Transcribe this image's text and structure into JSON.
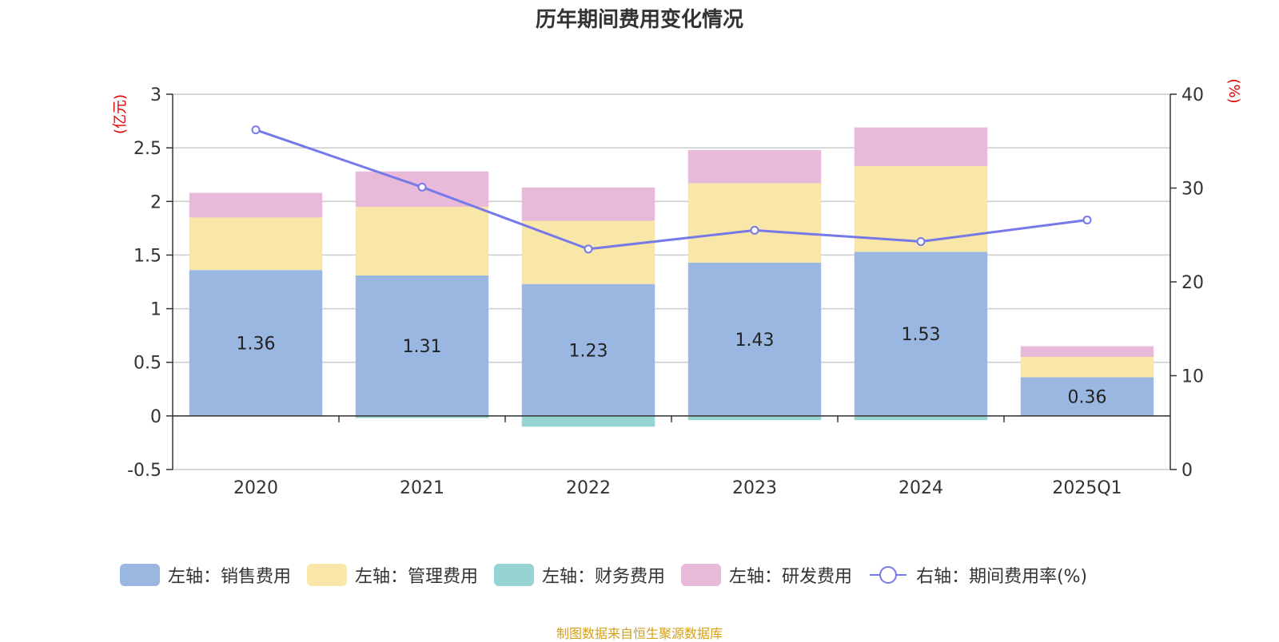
{
  "chart_data": {
    "type": "bar",
    "title": "历年期间费用变化情况",
    "categories": [
      "2020",
      "2021",
      "2022",
      "2023",
      "2024",
      "2025Q1"
    ],
    "left_axis": {
      "unit_label": "(亿元)",
      "ylim": [
        -0.5,
        3
      ],
      "ticks": [
        "3",
        "2.5",
        "2",
        "1.5",
        "1",
        "0.5",
        "0",
        "-0.5"
      ]
    },
    "right_axis": {
      "unit_label": "(%)",
      "ylim": [
        0,
        40
      ],
      "ticks": [
        "40",
        "30",
        "20",
        "10",
        "0"
      ]
    },
    "series": [
      {
        "name": "左轴：销售费用",
        "type": "bar",
        "color": "#9ab7e1",
        "values": [
          1.36,
          1.31,
          1.23,
          1.43,
          1.53,
          0.36
        ],
        "data_labels": [
          "1.36",
          "1.31",
          "1.23",
          "1.43",
          "1.53",
          "0.36"
        ]
      },
      {
        "name": "左轴：管理费用",
        "type": "bar",
        "color": "#f8e7a8",
        "values": [
          0.49,
          0.64,
          0.59,
          0.74,
          0.8,
          0.19
        ]
      },
      {
        "name": "左轴：财务费用",
        "type": "bar",
        "color": "#96d4d4",
        "values": [
          0.0,
          -0.02,
          -0.1,
          -0.04,
          -0.04,
          0.0
        ]
      },
      {
        "name": "左轴：研发费用",
        "type": "bar",
        "color": "#e8b9d9",
        "values": [
          0.23,
          0.33,
          0.31,
          0.31,
          0.36,
          0.1
        ]
      },
      {
        "name": "右轴：期间费用率(%)",
        "type": "line",
        "axis": "right",
        "color": "#7679e8",
        "values": [
          36.2,
          30.1,
          23.5,
          25.5,
          24.3,
          26.6
        ]
      }
    ],
    "grid": true,
    "legend_position": "bottom"
  },
  "source_note": "制图数据来自恒生聚源数据库"
}
